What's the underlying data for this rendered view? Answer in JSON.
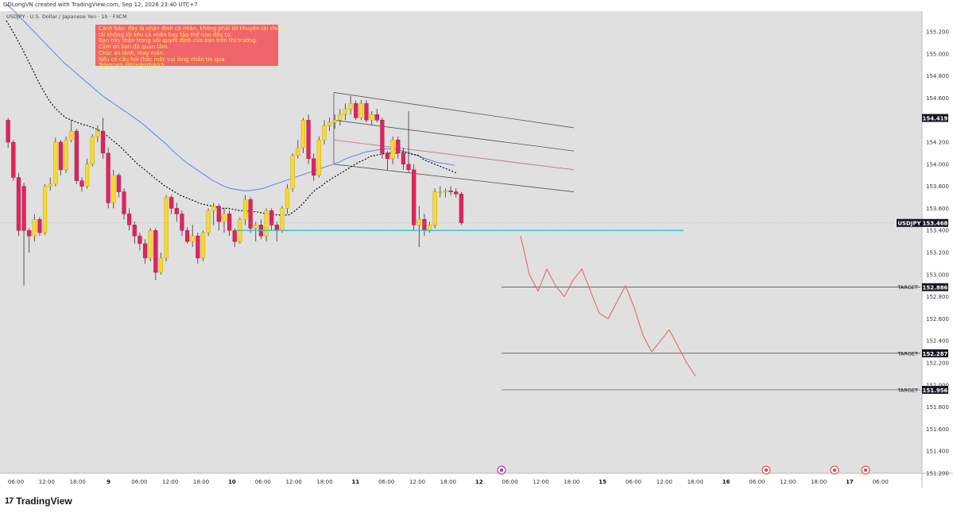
{
  "header": {
    "creator_line": "GDLongVN created with TradingView.com, Sep 12, 2026 23:40 UTC+7",
    "symbol_line": "USDJPY · U.S. Dollar / Japanese Yen · 1h · FXCM"
  },
  "notice": {
    "lines": [
      "Cảnh báo: đây là nhận định cá nhân, không phải lời khuyên tài chính,",
      "tôi không lôi kéo cá nhân hay tập thể nào đầu tư.",
      "Bạn hãy thận trọng với quyết định của bạn trên thị trường.",
      "Cảm ơn bạn đã quan tâm.",
      "Chúc an lành, may mắn.",
      "Nếu có câu hỏi thắc mắc vui lòng nhắn tin qua",
      "Telegram @traderduklch"
    ],
    "bg_color": "#f0646c",
    "text_color": "#ffec3d"
  },
  "branding": {
    "logo_mark": "17",
    "logo_text": "TradingView"
  },
  "colors": {
    "plot_bg": "#e0e0e0",
    "bull": "#fcd92a",
    "bear": "#e0245e",
    "ema_fast": "#111111",
    "ema_slow": "#5b84e8",
    "support": "#2ac4d0",
    "projection": "#e06060",
    "channel": "#555555",
    "channel_mid": "#b07070"
  },
  "chart_data": {
    "type": "candlestick",
    "symbol": "USDJPY",
    "timeframe": "1h",
    "ylim": [
      151.0,
      155.45
    ],
    "price_ticks": [
      155.2,
      155.0,
      154.8,
      154.6,
      154.4,
      154.2,
      154.0,
      153.8,
      153.6,
      153.4,
      153.2,
      153.0,
      152.8,
      152.6,
      152.4,
      152.2,
      152.0,
      151.8,
      151.6,
      151.4,
      151.2
    ],
    "price_tick_labels": [
      "155.200",
      "155.000",
      "154.800",
      "154.600",
      "",
      "154.200",
      "154.000",
      "153.800",
      "153.600",
      "153.400",
      "153.200",
      "153.000",
      "152.800",
      "152.600",
      "152.400",
      "152.200",
      "152.000",
      "151.800",
      "151.600",
      "151.400",
      "151.200"
    ],
    "time_ticks": [
      "06:00",
      "12:00",
      "18:00",
      "9",
      "06:00",
      "12:00",
      "18:00",
      "10",
      "06:00",
      "12:00",
      "18:00",
      "11",
      "06:00",
      "12:00",
      "18:00",
      "12",
      "06:00",
      "12:00",
      "18:00",
      "15",
      "06:00",
      "12:00",
      "18:00",
      "16",
      "06:00",
      "12:00",
      "18:00",
      "17",
      "06:00"
    ],
    "candles": [
      {
        "o": 154.4,
        "h": 154.42,
        "l": 154.15,
        "c": 154.2
      },
      {
        "o": 154.2,
        "h": 154.22,
        "l": 153.85,
        "c": 153.88
      },
      {
        "o": 153.88,
        "h": 153.92,
        "l": 153.35,
        "c": 153.4
      },
      {
        "o": 153.8,
        "h": 153.83,
        "l": 152.9,
        "c": 153.4
      },
      {
        "o": 153.4,
        "h": 153.42,
        "l": 153.2,
        "c": 153.35
      },
      {
        "o": 153.35,
        "h": 153.55,
        "l": 153.3,
        "c": 153.5
      },
      {
        "o": 153.5,
        "h": 153.52,
        "l": 153.35,
        "c": 153.38
      },
      {
        "o": 153.38,
        "h": 153.82,
        "l": 153.36,
        "c": 153.8
      },
      {
        "o": 153.8,
        "h": 153.88,
        "l": 153.76,
        "c": 153.82
      },
      {
        "o": 153.82,
        "h": 154.24,
        "l": 153.8,
        "c": 154.2
      },
      {
        "o": 154.2,
        "h": 154.22,
        "l": 153.9,
        "c": 153.95
      },
      {
        "o": 153.95,
        "h": 154.25,
        "l": 153.92,
        "c": 154.22
      },
      {
        "o": 154.22,
        "h": 154.4,
        "l": 154.2,
        "c": 154.3
      },
      {
        "o": 154.3,
        "h": 154.32,
        "l": 153.82,
        "c": 153.85
      },
      {
        "o": 153.85,
        "h": 153.88,
        "l": 153.75,
        "c": 153.8
      },
      {
        "o": 153.8,
        "h": 154.05,
        "l": 153.78,
        "c": 154.0
      },
      {
        "o": 154.0,
        "h": 154.27,
        "l": 153.98,
        "c": 154.25
      },
      {
        "o": 154.25,
        "h": 154.35,
        "l": 154.2,
        "c": 154.3
      },
      {
        "o": 154.3,
        "h": 154.42,
        "l": 154.05,
        "c": 154.1
      },
      {
        "o": 154.1,
        "h": 154.15,
        "l": 153.6,
        "c": 153.65
      },
      {
        "o": 153.65,
        "h": 153.95,
        "l": 153.6,
        "c": 153.9
      },
      {
        "o": 153.9,
        "h": 153.92,
        "l": 153.7,
        "c": 153.75
      },
      {
        "o": 153.75,
        "h": 153.78,
        "l": 153.5,
        "c": 153.55
      },
      {
        "o": 153.55,
        "h": 153.6,
        "l": 153.4,
        "c": 153.45
      },
      {
        "o": 153.45,
        "h": 153.48,
        "l": 153.28,
        "c": 153.35
      },
      {
        "o": 153.35,
        "h": 153.38,
        "l": 153.22,
        "c": 153.28
      },
      {
        "o": 153.28,
        "h": 153.32,
        "l": 153.1,
        "c": 153.15
      },
      {
        "o": 153.15,
        "h": 153.42,
        "l": 153.12,
        "c": 153.4
      },
      {
        "o": 153.4,
        "h": 153.42,
        "l": 152.95,
        "c": 153.02
      },
      {
        "o": 153.02,
        "h": 153.2,
        "l": 153.0,
        "c": 153.15
      },
      {
        "o": 153.15,
        "h": 153.72,
        "l": 153.12,
        "c": 153.7
      },
      {
        "o": 153.7,
        "h": 153.72,
        "l": 153.55,
        "c": 153.6
      },
      {
        "o": 153.6,
        "h": 153.65,
        "l": 153.48,
        "c": 153.55
      },
      {
        "o": 153.55,
        "h": 153.58,
        "l": 153.35,
        "c": 153.4
      },
      {
        "o": 153.4,
        "h": 153.43,
        "l": 153.28,
        "c": 153.3
      },
      {
        "o": 153.3,
        "h": 153.45,
        "l": 153.25,
        "c": 153.35
      },
      {
        "o": 153.35,
        "h": 153.38,
        "l": 153.1,
        "c": 153.15
      },
      {
        "o": 153.15,
        "h": 153.4,
        "l": 153.12,
        "c": 153.38
      },
      {
        "o": 153.38,
        "h": 153.6,
        "l": 153.35,
        "c": 153.58
      },
      {
        "o": 153.58,
        "h": 153.65,
        "l": 153.45,
        "c": 153.62
      },
      {
        "o": 153.62,
        "h": 153.64,
        "l": 153.4,
        "c": 153.48
      },
      {
        "o": 153.48,
        "h": 153.6,
        "l": 153.38,
        "c": 153.55
      },
      {
        "o": 153.55,
        "h": 153.58,
        "l": 153.35,
        "c": 153.4
      },
      {
        "o": 153.4,
        "h": 153.42,
        "l": 153.25,
        "c": 153.3
      },
      {
        "o": 153.3,
        "h": 153.52,
        "l": 153.28,
        "c": 153.5
      },
      {
        "o": 153.5,
        "h": 153.72,
        "l": 153.45,
        "c": 153.68
      },
      {
        "o": 153.68,
        "h": 153.7,
        "l": 153.38,
        "c": 153.42
      },
      {
        "o": 153.42,
        "h": 153.48,
        "l": 153.3,
        "c": 153.45
      },
      {
        "o": 153.45,
        "h": 153.5,
        "l": 153.32,
        "c": 153.35
      },
      {
        "o": 153.35,
        "h": 153.6,
        "l": 153.3,
        "c": 153.58
      },
      {
        "o": 153.58,
        "h": 153.6,
        "l": 153.4,
        "c": 153.45
      },
      {
        "o": 153.45,
        "h": 153.48,
        "l": 153.3,
        "c": 153.4
      },
      {
        "o": 153.4,
        "h": 153.62,
        "l": 153.38,
        "c": 153.6
      },
      {
        "o": 153.6,
        "h": 153.82,
        "l": 153.55,
        "c": 153.78
      },
      {
        "o": 153.78,
        "h": 154.1,
        "l": 153.75,
        "c": 154.08
      },
      {
        "o": 154.08,
        "h": 154.22,
        "l": 154.05,
        "c": 154.15
      },
      {
        "o": 154.15,
        "h": 154.42,
        "l": 154.1,
        "c": 154.4
      },
      {
        "o": 154.4,
        "h": 154.45,
        "l": 154.0,
        "c": 154.05
      },
      {
        "o": 154.05,
        "h": 154.1,
        "l": 153.85,
        "c": 153.9
      },
      {
        "o": 153.9,
        "h": 154.25,
        "l": 153.88,
        "c": 154.22
      },
      {
        "o": 154.22,
        "h": 154.4,
        "l": 154.18,
        "c": 154.35
      },
      {
        "o": 154.35,
        "h": 154.42,
        "l": 154.3,
        "c": 154.38
      },
      {
        "o": 154.38,
        "h": 154.45,
        "l": 154.32,
        "c": 154.4
      },
      {
        "o": 154.4,
        "h": 154.5,
        "l": 154.35,
        "c": 154.45
      },
      {
        "o": 154.45,
        "h": 154.55,
        "l": 154.4,
        "c": 154.5
      },
      {
        "o": 154.5,
        "h": 154.62,
        "l": 154.45,
        "c": 154.55
      },
      {
        "o": 154.55,
        "h": 154.58,
        "l": 154.4,
        "c": 154.42
      },
      {
        "o": 154.42,
        "h": 154.58,
        "l": 154.4,
        "c": 154.55
      },
      {
        "o": 154.55,
        "h": 154.58,
        "l": 154.38,
        "c": 154.4
      },
      {
        "o": 154.4,
        "h": 154.48,
        "l": 154.36,
        "c": 154.45
      },
      {
        "o": 154.45,
        "h": 154.5,
        "l": 154.38,
        "c": 154.4
      },
      {
        "o": 154.4,
        "h": 154.42,
        "l": 154.05,
        "c": 154.1
      },
      {
        "o": 154.1,
        "h": 154.12,
        "l": 153.95,
        "c": 154.05
      },
      {
        "o": 154.05,
        "h": 154.25,
        "l": 154.0,
        "c": 154.22
      },
      {
        "o": 154.22,
        "h": 154.25,
        "l": 154.05,
        "c": 154.1
      },
      {
        "o": 154.1,
        "h": 154.15,
        "l": 153.95,
        "c": 154.0
      },
      {
        "o": 154.0,
        "h": 154.48,
        "l": 153.92,
        "c": 153.95
      },
      {
        "o": 153.95,
        "h": 154.0,
        "l": 153.4,
        "c": 153.45
      },
      {
        "o": 153.45,
        "h": 153.62,
        "l": 153.25,
        "c": 153.5
      },
      {
        "o": 153.5,
        "h": 153.55,
        "l": 153.35,
        "c": 153.4
      },
      {
        "o": 153.4,
        "h": 153.48,
        "l": 153.38,
        "c": 153.45
      },
      {
        "o": 153.45,
        "h": 153.78,
        "l": 153.42,
        "c": 153.75
      },
      {
        "o": 153.75,
        "h": 153.8,
        "l": 153.7,
        "c": 153.75
      },
      {
        "o": 153.75,
        "h": 153.78,
        "l": 153.7,
        "c": 153.76
      },
      {
        "o": 153.76,
        "h": 153.8,
        "l": 153.72,
        "c": 153.75
      },
      {
        "o": 153.75,
        "h": 153.78,
        "l": 153.7,
        "c": 153.73
      },
      {
        "o": 153.73,
        "h": 153.75,
        "l": 153.45,
        "c": 153.468
      }
    ],
    "ema_fast": [
      155.3,
      155.22,
      155.13,
      155.04,
      154.94,
      154.84,
      154.74,
      154.65,
      154.57,
      154.51,
      154.46,
      154.42,
      154.4,
      154.38,
      154.36,
      154.35,
      154.33,
      154.31,
      154.28,
      154.24,
      154.2,
      154.16,
      154.11,
      154.06,
      154.01,
      153.97,
      153.93,
      153.89,
      153.85,
      153.81,
      153.78,
      153.75,
      153.72,
      153.7,
      153.68,
      153.66,
      153.64,
      153.63,
      153.62,
      153.61,
      153.6,
      153.6,
      153.59,
      153.58,
      153.58,
      153.57,
      153.57,
      153.56,
      153.55,
      153.55,
      153.54,
      153.54,
      153.54,
      153.57,
      153.61,
      153.66,
      153.72,
      153.77,
      153.8,
      153.84,
      153.87,
      153.9,
      153.93,
      153.96,
      153.99,
      154.02,
      154.04,
      154.07,
      154.08,
      154.09,
      154.1,
      154.1,
      154.1,
      154.11,
      154.1,
      154.09,
      154.08,
      154.04,
      154.02,
      154.0,
      153.98,
      153.96,
      153.94,
      153.92
    ],
    "ema_slow": [
      155.45,
      155.4,
      155.34,
      155.28,
      155.22,
      155.16,
      155.1,
      155.04,
      154.98,
      154.92,
      154.87,
      154.82,
      154.77,
      154.72,
      154.67,
      154.62,
      154.58,
      154.54,
      154.5,
      154.46,
      154.42,
      154.38,
      154.33,
      154.28,
      154.23,
      154.18,
      154.12,
      154.07,
      154.02,
      153.98,
      153.94,
      153.9,
      153.86,
      153.83,
      153.8,
      153.78,
      153.77,
      153.76,
      153.76,
      153.77,
      153.78,
      153.8,
      153.82,
      153.84,
      153.86,
      153.88,
      153.9,
      153.92,
      153.94,
      153.96,
      153.98,
      154.0,
      154.02,
      154.05,
      154.07,
      154.09,
      154.11,
      154.12,
      154.13,
      154.14,
      154.14,
      154.13,
      154.12,
      154.1,
      154.08,
      154.06,
      154.04,
      154.02,
      154.01,
      154.0,
      153.99
    ],
    "support_level": 153.4,
    "last_price": "153.468",
    "price_marker": "154.419",
    "targets": [
      {
        "label": "TARGET",
        "price": 152.886,
        "text": "152.886"
      },
      {
        "label": "TARGET",
        "price": 152.287,
        "text": "152.287"
      },
      {
        "label": "TARGET",
        "price": 151.956,
        "text": "151.956"
      }
    ],
    "projection_path": [
      153.35,
      153.0,
      152.85,
      153.05,
      152.9,
      152.8,
      152.95,
      153.05,
      152.85,
      152.65,
      152.6,
      152.75,
      152.9,
      152.7,
      152.45,
      152.3,
      152.4,
      152.5,
      152.35,
      152.2,
      152.08
    ],
    "channel_lines": [
      {
        "y_start": 154.65,
        "y_end": 154.33
      },
      {
        "y_start": 154.4,
        "y_end": 154.12
      },
      {
        "y_start": 154.22,
        "y_end": 153.95
      },
      {
        "y_start": 154.0,
        "y_end": 153.75
      }
    ],
    "symbol_tag": "USDJPY",
    "event_markers": [
      {
        "type": "lightning",
        "color": "#9c27b0"
      },
      {
        "type": "dot",
        "color": "#e53935"
      },
      {
        "type": "flag",
        "color": "#e53935"
      },
      {
        "type": "flag",
        "color": "#e53935"
      }
    ]
  }
}
